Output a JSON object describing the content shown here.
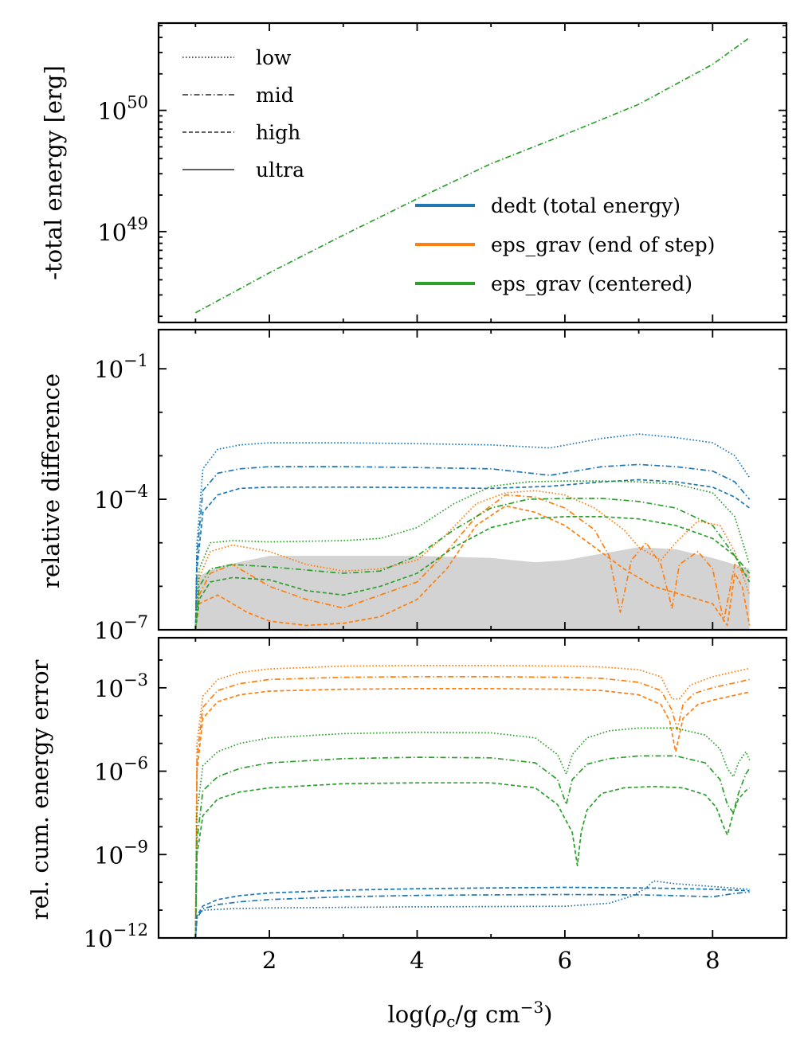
{
  "figure": {
    "shared_xlabel": "log(ρc/g cm−3)",
    "xlim": [
      0.5,
      9.0
    ],
    "x_ticks": [
      2,
      4,
      6,
      8
    ]
  },
  "legend_style": {
    "items": [
      {
        "label": "low",
        "dash": "dotted"
      },
      {
        "label": "mid",
        "dash": "dashdot"
      },
      {
        "label": "high",
        "dash": "dashed"
      },
      {
        "label": "ultra",
        "dash": "solid"
      }
    ]
  },
  "legend_color": {
    "items": [
      {
        "label": "dedt (total energy)",
        "color": "#1f77b4"
      },
      {
        "label": "eps_grav (end of step)",
        "color": "#ff7f0e"
      },
      {
        "label": "eps_grav (centered)",
        "color": "#2ca02c"
      }
    ]
  },
  "chart_data": [
    {
      "type": "line",
      "panel": "top",
      "ylabel": "-total energy [erg]",
      "yscale": "log",
      "ylim_log10": [
        48.25,
        50.72
      ],
      "y_ticks": [
        {
          "exp": 49,
          "label": "10^49"
        },
        {
          "exp": 50,
          "label": "10^50"
        }
      ],
      "x": [
        1.0,
        2.0,
        3.0,
        4.0,
        5.0,
        6.0,
        7.0,
        8.0,
        8.5
      ],
      "series": [
        {
          "name": "eps_grav (centered)",
          "color": "#2ca02c",
          "dash": "dashdot",
          "log10_y": [
            48.33,
            48.66,
            48.97,
            49.27,
            49.56,
            49.8,
            50.05,
            50.38,
            50.6
          ]
        }
      ]
    },
    {
      "type": "line",
      "panel": "middle",
      "ylabel": "relative difference",
      "yscale": "log",
      "ylim_log10": [
        -7,
        -0.1
      ],
      "y_ticks": [
        {
          "exp": -7,
          "label": "10^-7"
        },
        {
          "exp": -4,
          "label": "10^-4"
        },
        {
          "exp": -1,
          "label": "10^-1"
        }
      ],
      "shaded_band": {
        "color": "#d3d3d3",
        "x": [
          1.0,
          1.3,
          2.0,
          3.0,
          4.0,
          5.0,
          5.6,
          6.0,
          7.0,
          7.5,
          8.0,
          8.5
        ],
        "log10_top": [
          -5.8,
          -5.55,
          -5.3,
          -5.3,
          -5.3,
          -5.35,
          -5.45,
          -5.4,
          -5.1,
          -5.15,
          -5.35,
          -5.6
        ]
      },
      "series": [
        {
          "name": "dedt (total energy)",
          "quality": "low",
          "color": "#1f77b4",
          "dash": "dotted",
          "x": [
            1.0,
            1.02,
            1.1,
            1.3,
            1.6,
            2.0,
            3.0,
            4.0,
            5.0,
            5.8,
            6.5,
            7.0,
            7.5,
            8.0,
            8.3,
            8.5
          ],
          "log10_y": [
            -7.0,
            -5.0,
            -3.3,
            -2.85,
            -2.75,
            -2.7,
            -2.7,
            -2.72,
            -2.75,
            -2.82,
            -2.6,
            -2.5,
            -2.58,
            -2.7,
            -3.0,
            -3.5
          ]
        },
        {
          "name": "dedt (total energy)",
          "quality": "mid",
          "color": "#1f77b4",
          "dash": "dashdot",
          "x": [
            1.0,
            1.02,
            1.1,
            1.3,
            1.6,
            2.0,
            3.0,
            4.0,
            5.0,
            5.8,
            6.5,
            7.0,
            7.5,
            8.0,
            8.3,
            8.5
          ],
          "log10_y": [
            -7.0,
            -5.3,
            -3.8,
            -3.4,
            -3.3,
            -3.25,
            -3.25,
            -3.27,
            -3.3,
            -3.45,
            -3.25,
            -3.2,
            -3.25,
            -3.35,
            -3.6,
            -4.0
          ]
        },
        {
          "name": "dedt (total energy)",
          "quality": "high",
          "color": "#1f77b4",
          "dash": "dashed",
          "x": [
            1.0,
            1.02,
            1.1,
            1.3,
            1.6,
            2.0,
            3.0,
            4.0,
            5.0,
            5.8,
            6.5,
            7.0,
            7.5,
            8.0,
            8.3,
            8.5
          ],
          "log10_y": [
            -7.0,
            -5.6,
            -4.3,
            -3.9,
            -3.75,
            -3.72,
            -3.72,
            -3.73,
            -3.75,
            -3.7,
            -3.6,
            -3.55,
            -3.6,
            -3.72,
            -3.95,
            -4.2
          ]
        },
        {
          "name": "eps_grav (end of step)",
          "quality": "low",
          "color": "#ff7f0e",
          "dash": "dotted",
          "x": [
            1.0,
            1.05,
            1.2,
            1.5,
            2.0,
            2.5,
            3.0,
            3.5,
            4.0,
            4.4,
            4.8,
            5.2,
            5.6,
            6.0,
            6.4,
            6.8,
            7.0,
            7.3,
            7.5,
            7.8,
            8.1,
            8.3,
            8.5
          ],
          "log10_y": [
            -7.0,
            -5.8,
            -5.2,
            -5.05,
            -5.2,
            -5.5,
            -5.65,
            -5.6,
            -5.4,
            -4.8,
            -4.1,
            -3.85,
            -3.8,
            -3.9,
            -4.2,
            -4.7,
            -5.1,
            -5.4,
            -5.0,
            -4.5,
            -4.6,
            -5.2,
            -6.2
          ]
        },
        {
          "name": "eps_grav (end of step)",
          "quality": "mid",
          "color": "#ff7f0e",
          "dash": "dashdot",
          "x": [
            1.0,
            1.05,
            1.2,
            1.5,
            2.0,
            2.5,
            3.0,
            3.5,
            4.0,
            4.4,
            4.8,
            5.2,
            5.6,
            6.0,
            6.4,
            6.6,
            6.75,
            6.9,
            7.1,
            7.3,
            7.45,
            7.55,
            7.8,
            8.0,
            8.15,
            8.3,
            8.5
          ],
          "log10_y": [
            -7.0,
            -6.2,
            -5.7,
            -5.5,
            -6.0,
            -6.3,
            -6.5,
            -6.2,
            -5.9,
            -5.2,
            -4.4,
            -3.9,
            -3.95,
            -4.2,
            -4.7,
            -5.3,
            -6.6,
            -5.4,
            -5.0,
            -5.5,
            -6.5,
            -5.5,
            -5.2,
            -5.6,
            -6.8,
            -5.5,
            -5.8
          ]
        },
        {
          "name": "eps_grav (end of step)",
          "quality": "high",
          "color": "#ff7f0e",
          "dash": "dashed",
          "x": [
            1.0,
            1.05,
            1.3,
            1.7,
            2.0,
            2.5,
            3.0,
            3.5,
            4.0,
            4.4,
            4.8,
            5.2,
            5.6,
            6.0,
            6.4,
            6.8,
            7.2,
            7.6,
            8.0,
            8.2,
            8.3,
            8.4,
            8.5
          ],
          "log10_y": [
            -7.0,
            -6.4,
            -6.2,
            -6.6,
            -6.8,
            -6.9,
            -6.85,
            -6.7,
            -6.3,
            -5.6,
            -4.6,
            -4.15,
            -4.3,
            -4.6,
            -5.1,
            -5.6,
            -6.0,
            -6.2,
            -6.4,
            -6.9,
            -5.7,
            -6.0,
            -6.9
          ]
        },
        {
          "name": "eps_grav (centered)",
          "quality": "low",
          "color": "#2ca02c",
          "dash": "dotted",
          "x": [
            1.0,
            1.05,
            1.2,
            1.5,
            2.0,
            3.0,
            3.5,
            4.0,
            4.5,
            5.0,
            5.5,
            6.0,
            6.5,
            7.0,
            7.5,
            8.0,
            8.3,
            8.5
          ],
          "log10_y": [
            -7.0,
            -5.6,
            -5.0,
            -4.95,
            -4.98,
            -4.95,
            -4.9,
            -4.65,
            -4.1,
            -3.7,
            -3.6,
            -3.58,
            -3.58,
            -3.6,
            -3.65,
            -3.85,
            -4.4,
            -5.5
          ]
        },
        {
          "name": "eps_grav (centered)",
          "quality": "mid",
          "color": "#2ca02c",
          "dash": "dashdot",
          "x": [
            1.0,
            1.05,
            1.2,
            1.5,
            2.0,
            3.0,
            3.5,
            4.0,
            4.5,
            5.0,
            5.5,
            6.0,
            6.5,
            7.0,
            7.5,
            8.0,
            8.3,
            8.5
          ],
          "log10_y": [
            -7.0,
            -6.0,
            -5.6,
            -5.5,
            -5.55,
            -5.7,
            -5.65,
            -5.3,
            -4.7,
            -4.2,
            -4.0,
            -3.98,
            -3.98,
            -4.05,
            -4.2,
            -4.6,
            -5.3,
            -5.7
          ]
        },
        {
          "name": "eps_grav (centered)",
          "quality": "high",
          "color": "#2ca02c",
          "dash": "dashed",
          "x": [
            1.0,
            1.05,
            1.2,
            1.5,
            2.0,
            2.5,
            3.0,
            3.5,
            4.0,
            4.5,
            5.0,
            5.5,
            6.0,
            6.5,
            7.0,
            7.5,
            8.0,
            8.3,
            8.5
          ],
          "log10_y": [
            -7.0,
            -6.3,
            -5.9,
            -5.8,
            -5.85,
            -6.1,
            -6.2,
            -6.0,
            -5.7,
            -5.1,
            -4.65,
            -4.45,
            -4.4,
            -4.4,
            -4.45,
            -4.6,
            -4.9,
            -5.3,
            -5.9
          ]
        }
      ]
    },
    {
      "type": "line",
      "panel": "bottom",
      "ylabel": "rel. cum. energy error",
      "yscale": "log",
      "ylim_log10": [
        -12,
        -1.2
      ],
      "y_ticks": [
        {
          "exp": -12,
          "label": "10^-12"
        },
        {
          "exp": -9,
          "label": "10^-9"
        },
        {
          "exp": -6,
          "label": "10^-6"
        },
        {
          "exp": -3,
          "label": "10^-3"
        }
      ],
      "series": [
        {
          "name": "eps_grav (end of step)",
          "quality": "low",
          "color": "#ff7f0e",
          "dash": "dotted",
          "x": [
            1.0,
            1.02,
            1.1,
            1.3,
            1.6,
            2.0,
            3.0,
            4.0,
            5.0,
            6.0,
            6.5,
            7.0,
            7.3,
            7.45,
            7.55,
            7.7,
            8.0,
            8.5
          ],
          "log10_y": [
            -12.0,
            -5.0,
            -3.3,
            -2.7,
            -2.45,
            -2.32,
            -2.22,
            -2.2,
            -2.2,
            -2.22,
            -2.25,
            -2.35,
            -2.6,
            -3.4,
            -3.4,
            -2.9,
            -2.6,
            -2.3
          ]
        },
        {
          "name": "eps_grav (end of step)",
          "quality": "mid",
          "color": "#ff7f0e",
          "dash": "dashdot",
          "x": [
            1.0,
            1.02,
            1.1,
            1.3,
            1.6,
            2.0,
            3.0,
            4.0,
            5.0,
            6.0,
            6.5,
            7.0,
            7.3,
            7.45,
            7.52,
            7.6,
            7.75,
            8.0,
            8.5
          ],
          "log10_y": [
            -12.0,
            -5.5,
            -3.7,
            -3.1,
            -2.85,
            -2.7,
            -2.62,
            -2.6,
            -2.6,
            -2.62,
            -2.66,
            -2.8,
            -3.1,
            -3.8,
            -4.5,
            -3.6,
            -3.2,
            -3.0,
            -2.7
          ]
        },
        {
          "name": "eps_grav (end of step)",
          "quality": "high",
          "color": "#ff7f0e",
          "dash": "dashed",
          "x": [
            1.0,
            1.02,
            1.1,
            1.3,
            1.6,
            2.0,
            3.0,
            4.0,
            5.0,
            6.0,
            6.5,
            7.0,
            7.3,
            7.42,
            7.5,
            7.6,
            7.8,
            8.0,
            8.5
          ],
          "log10_y": [
            -12.0,
            -6.0,
            -4.1,
            -3.5,
            -3.25,
            -3.12,
            -3.05,
            -3.03,
            -3.03,
            -3.05,
            -3.1,
            -3.25,
            -3.6,
            -4.2,
            -5.3,
            -4.1,
            -3.6,
            -3.45,
            -3.15
          ]
        },
        {
          "name": "eps_grav (centered)",
          "quality": "low",
          "color": "#2ca02c",
          "dash": "dotted",
          "x": [
            1.0,
            1.02,
            1.1,
            1.3,
            1.6,
            2.0,
            3.0,
            4.0,
            5.0,
            5.6,
            5.9,
            6.02,
            6.1,
            6.3,
            6.6,
            7.0,
            7.5,
            7.9,
            8.1,
            8.2,
            8.28,
            8.35,
            8.45,
            8.5
          ],
          "log10_y": [
            -12.0,
            -7.5,
            -5.8,
            -5.3,
            -5.0,
            -4.8,
            -4.65,
            -4.6,
            -4.62,
            -4.8,
            -5.4,
            -6.1,
            -5.4,
            -4.8,
            -4.55,
            -4.45,
            -4.45,
            -4.7,
            -5.2,
            -5.9,
            -6.2,
            -5.7,
            -5.3,
            -5.6
          ]
        },
        {
          "name": "eps_grav (centered)",
          "quality": "mid",
          "color": "#2ca02c",
          "dash": "dashdot",
          "x": [
            1.0,
            1.02,
            1.1,
            1.3,
            1.6,
            2.0,
            3.0,
            4.0,
            5.0,
            5.6,
            5.9,
            6.02,
            6.1,
            6.3,
            6.6,
            7.0,
            7.5,
            7.9,
            8.1,
            8.2,
            8.28,
            8.35,
            8.45,
            8.5
          ],
          "log10_y": [
            -12.0,
            -8.5,
            -6.7,
            -6.2,
            -5.9,
            -5.7,
            -5.55,
            -5.5,
            -5.52,
            -5.7,
            -6.3,
            -7.2,
            -6.3,
            -5.75,
            -5.55,
            -5.45,
            -5.45,
            -5.7,
            -6.3,
            -7.2,
            -7.5,
            -6.8,
            -6.1,
            -5.9
          ]
        },
        {
          "name": "eps_grav (centered)",
          "quality": "high",
          "color": "#2ca02c",
          "dash": "dashed",
          "x": [
            1.0,
            1.02,
            1.1,
            1.3,
            1.6,
            2.0,
            3.0,
            4.0,
            5.0,
            5.6,
            5.9,
            6.1,
            6.17,
            6.22,
            6.3,
            6.5,
            6.8,
            7.2,
            7.6,
            7.9,
            8.05,
            8.15,
            8.2,
            8.28,
            8.35,
            8.45,
            8.5
          ],
          "log10_y": [
            -12.0,
            -9.0,
            -7.6,
            -7.0,
            -6.75,
            -6.6,
            -6.45,
            -6.42,
            -6.42,
            -6.6,
            -7.2,
            -8.2,
            -9.4,
            -8.2,
            -7.4,
            -6.8,
            -6.6,
            -6.55,
            -6.6,
            -6.85,
            -7.3,
            -8.0,
            -8.3,
            -7.5,
            -7.0,
            -6.7,
            -6.6
          ]
        },
        {
          "name": "dedt (total energy)",
          "quality": "low",
          "color": "#1f77b4",
          "dash": "dotted",
          "x": [
            1.0,
            1.02,
            1.1,
            1.5,
            2.0,
            3.0,
            4.0,
            5.0,
            6.0,
            6.6,
            6.9,
            7.1,
            7.2,
            7.5,
            8.0,
            8.5
          ],
          "log10_y": [
            -12.0,
            -11.2,
            -11.0,
            -10.95,
            -10.92,
            -10.9,
            -10.88,
            -10.87,
            -10.86,
            -10.75,
            -10.5,
            -10.2,
            -9.95,
            -10.05,
            -10.15,
            -10.25
          ]
        },
        {
          "name": "dedt (total energy)",
          "quality": "mid",
          "color": "#1f77b4",
          "dash": "dashdot",
          "x": [
            1.0,
            1.02,
            1.1,
            1.3,
            1.6,
            2.0,
            3.0,
            4.0,
            5.0,
            6.0,
            7.0,
            7.5,
            8.0,
            8.3,
            8.5
          ],
          "log10_y": [
            -12.0,
            -11.3,
            -10.95,
            -10.8,
            -10.7,
            -10.62,
            -10.52,
            -10.47,
            -10.45,
            -10.44,
            -10.45,
            -10.48,
            -10.52,
            -10.4,
            -10.35
          ]
        },
        {
          "name": "dedt (total energy)",
          "quality": "high",
          "color": "#1f77b4",
          "dash": "dashed",
          "x": [
            1.0,
            1.02,
            1.1,
            1.3,
            1.6,
            2.0,
            3.0,
            4.0,
            5.0,
            6.0,
            7.0,
            7.5,
            8.0,
            8.5
          ],
          "log10_y": [
            -12.0,
            -11.2,
            -10.85,
            -10.62,
            -10.48,
            -10.38,
            -10.28,
            -10.23,
            -10.2,
            -10.18,
            -10.2,
            -10.22,
            -10.25,
            -10.3
          ]
        }
      ]
    }
  ]
}
